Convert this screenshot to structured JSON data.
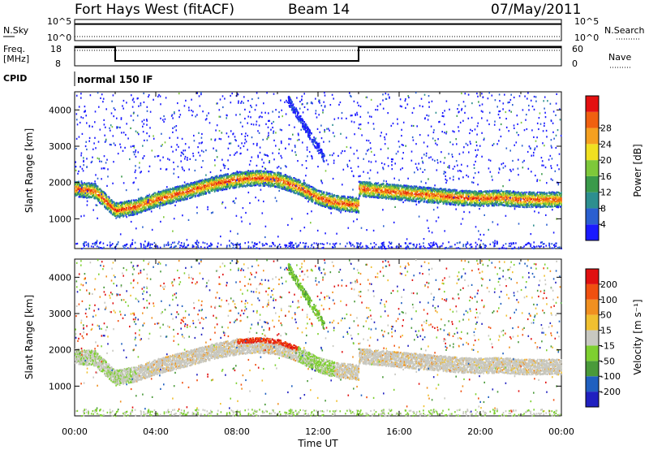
{
  "header": {
    "station": "Fort Hays West (fitACF)",
    "beam": "Beam 14",
    "date": "07/May/2011"
  },
  "parameters": {
    "nsky_label": "N.Sky",
    "nsearch_label": "N.Search",
    "noise_ticks": [
      "10^5",
      "10^0"
    ],
    "freq_label_line1": "Freq.",
    "freq_label_line2": "[MHz]",
    "freq_ticks": [
      "18",
      "8"
    ],
    "nave_label": "Nave",
    "nave_ticks": [
      "60",
      "0"
    ],
    "cpid_label": "CPID",
    "cpid_value": "normal 150 IF"
  },
  "chart_data": [
    {
      "type": "line",
      "title": "",
      "series": [
        {
          "name": "N.Sky",
          "x": [
            "00:00",
            "02:00",
            "04:00",
            "06:00",
            "08:00",
            "10:00",
            "12:00",
            "14:00",
            "16:00",
            "18:00",
            "20:00",
            "22:00",
            "24:00"
          ],
          "values": [
            50000,
            50000,
            50000,
            50000,
            50000,
            50000,
            50000,
            50000,
            50000,
            50000,
            50000,
            50000,
            50000
          ]
        },
        {
          "name": "N.Search",
          "x": [
            "00:00",
            "24:00"
          ],
          "values": [
            5,
            5
          ]
        }
      ],
      "y_scale": "log",
      "ylim": [
        1,
        100000
      ]
    },
    {
      "type": "line",
      "series": [
        {
          "name": "Freq. [MHz]",
          "x": [
            "00:00",
            "02:00",
            "02:00",
            "14:00",
            "14:00",
            "24:00"
          ],
          "values": [
            17.5,
            17.5,
            10.5,
            10.5,
            17.5,
            17.5
          ]
        },
        {
          "name": "Nave",
          "x": [
            "00:00",
            "24:00"
          ],
          "values": [
            58,
            58
          ]
        }
      ],
      "ylim_left": [
        8,
        18
      ],
      "ylim_right": [
        0,
        60
      ]
    },
    {
      "type": "heatmap",
      "ylabel": "Slant Range [km]",
      "xlabel": "Time UT",
      "x_ticks": [
        "00:00",
        "04:00",
        "08:00",
        "12:00",
        "16:00",
        "20:00",
        "00:00"
      ],
      "y_ticks": [
        1000,
        2000,
        3000,
        4000
      ],
      "xlim_hours": [
        0,
        24
      ],
      "ylim_km": [
        180,
        4500
      ],
      "colorbar": {
        "label": "Power [dB]",
        "ticks": [
          4,
          8,
          12,
          16,
          20,
          24,
          28
        ],
        "colors": [
          "#1a1aff",
          "#2a5fd0",
          "#2d8f8f",
          "#3a9a4a",
          "#7ec83a",
          "#f0e020",
          "#f5a020",
          "#f06010",
          "#e41010"
        ]
      },
      "scatter_bands": [
        {
          "x": [
            0,
            1,
            2,
            3,
            4,
            5,
            6,
            7,
            8,
            9,
            10,
            11,
            12,
            13,
            14
          ],
          "y_km": [
            1850,
            1780,
            1250,
            1350,
            1550,
            1700,
            1850,
            2000,
            2100,
            2150,
            2100,
            1900,
            1600,
            1450,
            1400
          ]
        },
        {
          "x": [
            14,
            15,
            16,
            17,
            18,
            19,
            20,
            21,
            22,
            23,
            24
          ],
          "y_km": [
            1850,
            1800,
            1750,
            1700,
            1650,
            1600,
            1580,
            1600,
            1550,
            1550,
            1550
          ]
        }
      ]
    },
    {
      "type": "heatmap",
      "ylabel": "Slant Range [km]",
      "xlabel": "Time UT",
      "x_ticks": [
        "00:00",
        "04:00",
        "08:00",
        "12:00",
        "16:00",
        "20:00",
        "00:00"
      ],
      "y_ticks": [
        1000,
        2000,
        3000,
        4000
      ],
      "xlim_hours": [
        0,
        24
      ],
      "ylim_km": [
        180,
        4500
      ],
      "colorbar": {
        "label": "Velocity [m s⁻¹]",
        "ticks": [
          "200",
          "100",
          "50",
          "15",
          "-15",
          "-50",
          "-100",
          "-200"
        ],
        "colors": [
          "#2020c0",
          "#2060c0",
          "#4a9a3a",
          "#7ed030",
          "#c8c8c0",
          "#f0c030",
          "#f09020",
          "#f05010",
          "#e01010"
        ]
      }
    }
  ],
  "time_axis_label": "Time UT"
}
